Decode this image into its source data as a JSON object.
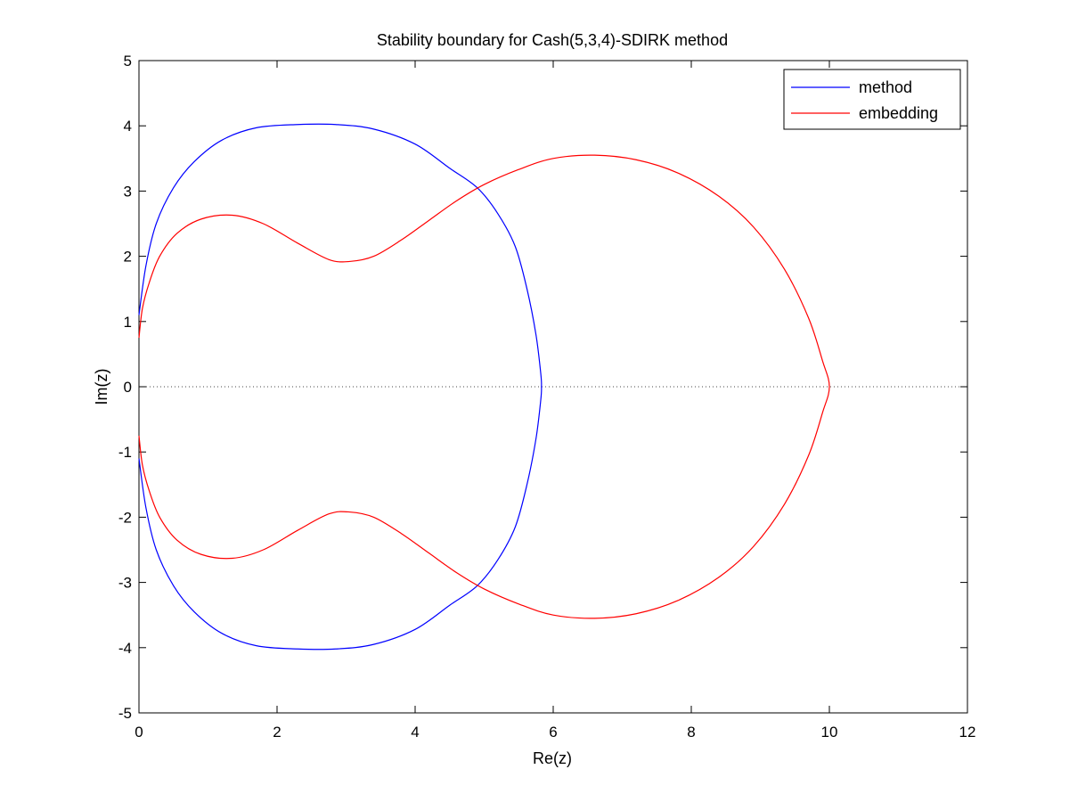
{
  "chart_data": {
    "type": "line",
    "title": "Stability boundary for Cash(5,3,4)-SDIRK method",
    "xlabel": "Re(z)",
    "ylabel": "Im(z)",
    "xlim": [
      0,
      12
    ],
    "ylim": [
      -5,
      5
    ],
    "xticks": [
      0,
      2,
      4,
      6,
      8,
      10,
      12
    ],
    "yticks": [
      -5,
      -4,
      -3,
      -2,
      -1,
      0,
      1,
      2,
      3,
      4,
      5
    ],
    "grid": false,
    "legend_position": "top-right",
    "colors": {
      "method": "#0000ff",
      "embedding": "#ff0000",
      "zero_line": "#444444"
    },
    "reference_line": {
      "y": 0,
      "style": "dotted"
    },
    "series": [
      {
        "name": "method",
        "points": [
          [
            0,
            1.1
          ],
          [
            0.1,
            1.85
          ],
          [
            0.25,
            2.5
          ],
          [
            0.5,
            3.05
          ],
          [
            0.8,
            3.45
          ],
          [
            1.2,
            3.78
          ],
          [
            1.7,
            3.97
          ],
          [
            2.3,
            4.02
          ],
          [
            2.85,
            4.02
          ],
          [
            3.4,
            3.95
          ],
          [
            4.0,
            3.72
          ],
          [
            4.5,
            3.35
          ],
          [
            4.9,
            3.05
          ],
          [
            5.2,
            2.65
          ],
          [
            5.45,
            2.15
          ],
          [
            5.62,
            1.5
          ],
          [
            5.75,
            0.8
          ],
          [
            5.82,
            0.2
          ],
          [
            5.83,
            0
          ],
          [
            5.82,
            -0.2
          ],
          [
            5.75,
            -0.8
          ],
          [
            5.62,
            -1.5
          ],
          [
            5.45,
            -2.15
          ],
          [
            5.2,
            -2.65
          ],
          [
            4.9,
            -3.05
          ],
          [
            4.5,
            -3.35
          ],
          [
            4.0,
            -3.72
          ],
          [
            3.4,
            -3.95
          ],
          [
            2.85,
            -4.02
          ],
          [
            2.3,
            -4.02
          ],
          [
            1.7,
            -3.97
          ],
          [
            1.2,
            -3.78
          ],
          [
            0.8,
            -3.45
          ],
          [
            0.5,
            -3.05
          ],
          [
            0.25,
            -2.5
          ],
          [
            0.1,
            -1.85
          ],
          [
            0,
            -1.1
          ]
        ]
      },
      {
        "name": "embedding",
        "points": [
          [
            0,
            0.75
          ],
          [
            0.05,
            1.2
          ],
          [
            0.15,
            1.6
          ],
          [
            0.3,
            2.0
          ],
          [
            0.55,
            2.35
          ],
          [
            0.9,
            2.57
          ],
          [
            1.35,
            2.63
          ],
          [
            1.8,
            2.5
          ],
          [
            2.3,
            2.2
          ],
          [
            2.75,
            1.95
          ],
          [
            3.05,
            1.92
          ],
          [
            3.4,
            2.0
          ],
          [
            3.8,
            2.25
          ],
          [
            4.2,
            2.55
          ],
          [
            4.6,
            2.85
          ],
          [
            5.0,
            3.1
          ],
          [
            5.5,
            3.33
          ],
          [
            6.0,
            3.5
          ],
          [
            6.6,
            3.55
          ],
          [
            7.2,
            3.48
          ],
          [
            7.8,
            3.28
          ],
          [
            8.4,
            2.92
          ],
          [
            8.9,
            2.45
          ],
          [
            9.35,
            1.8
          ],
          [
            9.7,
            1.05
          ],
          [
            9.9,
            0.4
          ],
          [
            10.0,
            0
          ],
          [
            9.9,
            -0.4
          ],
          [
            9.7,
            -1.05
          ],
          [
            9.35,
            -1.8
          ],
          [
            8.9,
            -2.45
          ],
          [
            8.4,
            -2.92
          ],
          [
            7.8,
            -3.28
          ],
          [
            7.2,
            -3.48
          ],
          [
            6.6,
            -3.55
          ],
          [
            6.0,
            -3.5
          ],
          [
            5.5,
            -3.33
          ],
          [
            5.0,
            -3.1
          ],
          [
            4.6,
            -2.85
          ],
          [
            4.2,
            -2.55
          ],
          [
            3.8,
            -2.25
          ],
          [
            3.4,
            -2.0
          ],
          [
            3.05,
            -1.92
          ],
          [
            2.75,
            -1.95
          ],
          [
            2.3,
            -2.2
          ],
          [
            1.8,
            -2.5
          ],
          [
            1.35,
            -2.63
          ],
          [
            0.9,
            -2.57
          ],
          [
            0.55,
            -2.35
          ],
          [
            0.3,
            -2.0
          ],
          [
            0.15,
            -1.6
          ],
          [
            0.05,
            -1.2
          ],
          [
            0,
            -0.75
          ]
        ]
      }
    ]
  }
}
